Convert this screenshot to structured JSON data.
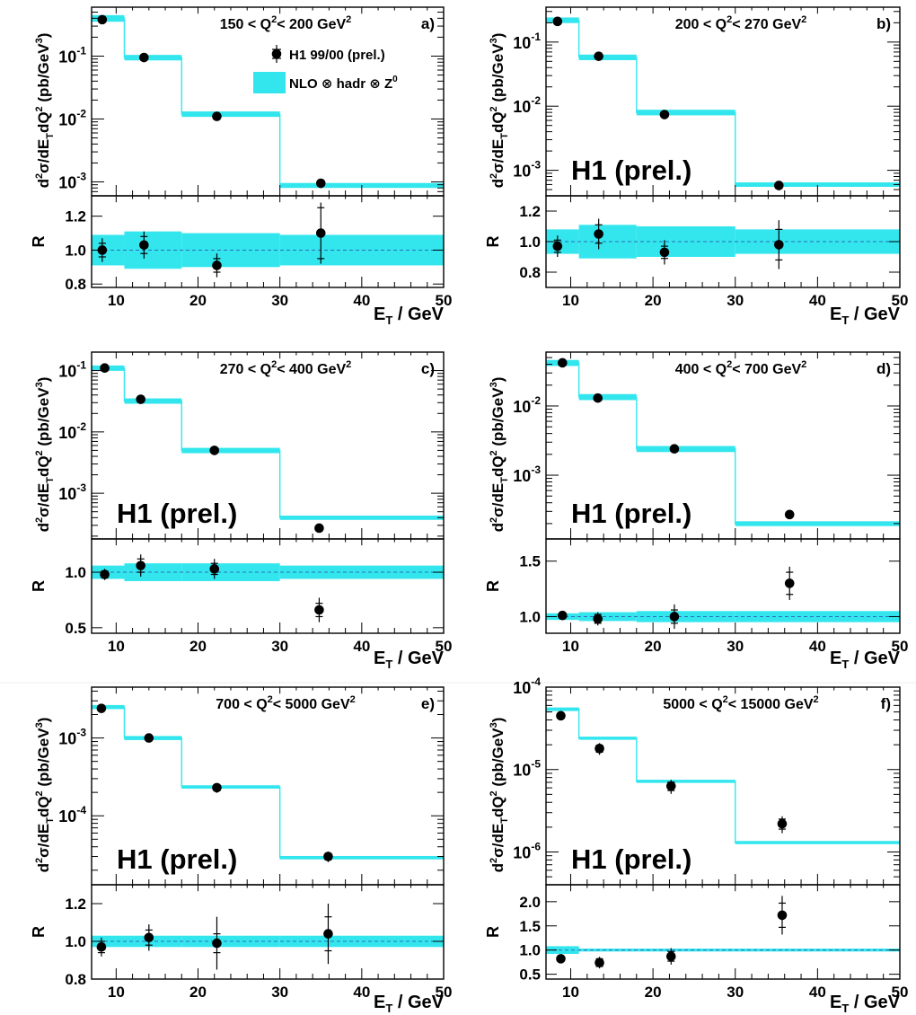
{
  "chart_data": [
    {
      "type": "scatter",
      "panel": "a)",
      "title": "150 < Q²< 200 GeV²",
      "ylabel": "d²σ/dE_TdQ² (pb/GeV³)",
      "ratio_ylabel": "R",
      "xlabel": "E_T / GeV",
      "xlim": [
        7,
        50
      ],
      "xticks": [
        "10",
        "20",
        "30",
        "40",
        "50"
      ],
      "ylog": true,
      "ylim": [
        0.0006,
        0.6
      ],
      "yticks": [
        {
          "v": 0.1,
          "base": "10",
          "exp": "-1"
        },
        {
          "v": 0.01,
          "base": "10",
          "exp": "-2"
        },
        {
          "v": 0.001,
          "base": "10",
          "exp": "-3"
        }
      ],
      "legend": {
        "data": "H1 99/00 (prel.)",
        "theory": "NLO ⊗ hadr ⊗ Z⁰"
      },
      "watermark": "",
      "bins": [
        [
          7,
          11
        ],
        [
          11,
          18
        ],
        [
          18,
          30
        ],
        [
          30,
          50
        ]
      ],
      "series": [
        {
          "name": "H1 99/00 (prel.)",
          "x": [
            8.3,
            13.4,
            22.3,
            35.0
          ],
          "y": [
            0.38,
            0.095,
            0.011,
            0.00095
          ]
        },
        {
          "name": "NLO ⊗ hadr ⊗ Z⁰",
          "y": [
            0.4,
            0.095,
            0.012,
            0.00088
          ],
          "band_rel": [
            0.12,
            0.1,
            0.1,
            0.09
          ]
        }
      ],
      "ratio": {
        "ylim": [
          0.78,
          1.32
        ],
        "yticks": [
          {
            "v": 0.8,
            "t": "0.8"
          },
          {
            "v": 1.0,
            "t": "1.0"
          },
          {
            "v": 1.2,
            "t": "1.2"
          }
        ],
        "values": [
          1.0,
          1.03,
          0.91,
          1.1
        ],
        "err_stat": [
          0.04,
          0.05,
          0.04,
          0.15
        ],
        "err_tot": [
          0.07,
          0.08,
          0.07,
          0.18
        ],
        "band": [
          0.09,
          0.11,
          0.1,
          0.09
        ]
      }
    },
    {
      "type": "scatter",
      "panel": "b)",
      "title": "200 < Q²< 270 GeV²",
      "ylabel": "d²σ/dE_TdQ² (pb/GeV³)",
      "ratio_ylabel": "R",
      "xlabel": "E_T / GeV",
      "xlim": [
        7,
        50
      ],
      "xticks": [
        "10",
        "20",
        "30",
        "40",
        "50"
      ],
      "ylog": true,
      "ylim": [
        0.0004,
        0.35
      ],
      "yticks": [
        {
          "v": 0.1,
          "base": "10",
          "exp": "-1"
        },
        {
          "v": 0.01,
          "base": "10",
          "exp": "-2"
        },
        {
          "v": 0.001,
          "base": "10",
          "exp": "-3"
        }
      ],
      "legend": null,
      "watermark": "H1 (prel.)",
      "bins": [
        [
          7,
          11
        ],
        [
          11,
          18
        ],
        [
          18,
          30
        ],
        [
          30,
          50
        ]
      ],
      "series": [
        {
          "name": "H1 99/00 (prel.)",
          "x": [
            8.4,
            13.4,
            21.4,
            35.3
          ],
          "y": [
            0.21,
            0.06,
            0.0074,
            0.00058
          ]
        },
        {
          "name": "NLO ⊗ hadr ⊗ Z⁰",
          "y": [
            0.22,
            0.058,
            0.008,
            0.0006
          ],
          "band_rel": [
            0.1,
            0.1,
            0.1,
            0.08
          ]
        }
      ],
      "ratio": {
        "ylim": [
          0.7,
          1.3
        ],
        "yticks": [
          {
            "v": 0.8,
            "t": "0.8"
          },
          {
            "v": 1.0,
            "t": "1.0"
          },
          {
            "v": 1.2,
            "t": "1.2"
          }
        ],
        "values": [
          0.97,
          1.05,
          0.93,
          0.98
        ],
        "err_stat": [
          0.04,
          0.06,
          0.04,
          0.1
        ],
        "err_tot": [
          0.07,
          0.1,
          0.08,
          0.16
        ],
        "band": [
          0.08,
          0.11,
          0.1,
          0.08
        ]
      }
    },
    {
      "type": "scatter",
      "panel": "c)",
      "title": "270 < Q²< 400 GeV²",
      "ylabel": "d²σ/dE_TdQ² (pb/GeV³)",
      "ratio_ylabel": "R",
      "xlabel": "E_T / GeV",
      "xlim": [
        7,
        50
      ],
      "xticks": [
        "10",
        "20",
        "30",
        "40",
        "50"
      ],
      "ylog": true,
      "ylim": [
        0.00018,
        0.2
      ],
      "yticks": [
        {
          "v": 0.1,
          "base": "10",
          "exp": "-1"
        },
        {
          "v": 0.01,
          "base": "10",
          "exp": "-2"
        },
        {
          "v": 0.001,
          "base": "10",
          "exp": "-3"
        }
      ],
      "legend": null,
      "watermark": "H1 (prel.)",
      "bins": [
        [
          7,
          11
        ],
        [
          11,
          18
        ],
        [
          18,
          30
        ],
        [
          30,
          50
        ]
      ],
      "series": [
        {
          "name": "H1 99/00 (prel.)",
          "x": [
            8.6,
            13.0,
            22.0,
            34.8
          ],
          "y": [
            0.11,
            0.034,
            0.005,
            0.00027
          ]
        },
        {
          "name": "NLO ⊗ hadr ⊗ Z⁰",
          "y": [
            0.11,
            0.032,
            0.005,
            0.0004
          ],
          "band_rel": [
            0.1,
            0.1,
            0.1,
            0.08
          ]
        }
      ],
      "ratio": {
        "ylim": [
          0.45,
          1.3
        ],
        "yticks": [
          {
            "v": 0.5,
            "t": "0.5"
          },
          {
            "v": 1.0,
            "t": "1.0"
          }
        ],
        "values": [
          0.98,
          1.06,
          1.03,
          0.66
        ],
        "err_stat": [
          0.03,
          0.06,
          0.05,
          0.06
        ],
        "err_tot": [
          0.05,
          0.1,
          0.09,
          0.11
        ],
        "band": [
          0.06,
          0.08,
          0.08,
          0.06
        ]
      }
    },
    {
      "type": "scatter",
      "panel": "d)",
      "title": "400 < Q²< 700 GeV²",
      "ylabel": "d²σ/dE_TdQ² (pb/GeV³)",
      "ratio_ylabel": "R",
      "xlabel": "E_T / GeV",
      "xlim": [
        7,
        50
      ],
      "xticks": [
        "10",
        "20",
        "30",
        "40",
        "50"
      ],
      "ylog": true,
      "ylim": [
        0.00012,
        0.06
      ],
      "yticks": [
        {
          "v": 0.01,
          "base": "10",
          "exp": "-2"
        },
        {
          "v": 0.001,
          "base": "10",
          "exp": "-3"
        }
      ],
      "legend": null,
      "watermark": "H1 (prel.)",
      "bins": [
        [
          7,
          11
        ],
        [
          11,
          18
        ],
        [
          18,
          30
        ],
        [
          30,
          50
        ]
      ],
      "series": [
        {
          "name": "H1 99/00 (prel.)",
          "x": [
            9.0,
            13.3,
            22.6,
            36.6
          ],
          "y": [
            0.042,
            0.013,
            0.0024,
            0.00027
          ]
        },
        {
          "name": "NLO ⊗ hadr ⊗ Z⁰",
          "y": [
            0.042,
            0.0135,
            0.0024,
            0.0002
          ],
          "band_rel": [
            0.1,
            0.1,
            0.1,
            0.08
          ]
        }
      ],
      "ratio": {
        "ylim": [
          0.85,
          1.7
        ],
        "yticks": [
          {
            "v": 1.0,
            "t": "1.0"
          },
          {
            "v": 1.5,
            "t": "1.5"
          }
        ],
        "values": [
          1.01,
          0.98,
          1.0,
          1.3
        ],
        "err_stat": [
          0.02,
          0.04,
          0.06,
          0.1
        ],
        "err_tot": [
          0.03,
          0.06,
          0.11,
          0.15
        ],
        "band": [
          0.03,
          0.04,
          0.05,
          0.05
        ]
      }
    },
    {
      "type": "scatter",
      "panel": "e)",
      "title": "700 < Q²< 5000 GeV²",
      "ylabel": "d²σ/dE_TdQ² (pb/GeV³)",
      "ratio_ylabel": "R",
      "xlabel": "E_T / GeV",
      "xlim": [
        7,
        50
      ],
      "xticks": [
        "10",
        "20",
        "30",
        "40",
        "50"
      ],
      "ylog": true,
      "ylim": [
        1.3e-05,
        0.0045
      ],
      "yticks": [
        {
          "v": 0.001,
          "base": "10",
          "exp": "-3"
        },
        {
          "v": 0.0001,
          "base": "10",
          "exp": "-4"
        }
      ],
      "legend": null,
      "watermark": "H1 (prel.)",
      "bins": [
        [
          7,
          11
        ],
        [
          11,
          18
        ],
        [
          18,
          30
        ],
        [
          30,
          50
        ]
      ],
      "series": [
        {
          "name": "H1 99/00 (prel.)",
          "x": [
            8.2,
            14.0,
            22.3,
            35.9
          ],
          "y": [
            0.0024,
            0.001,
            0.00023,
            3e-05
          ]
        },
        {
          "name": "NLO ⊗ hadr ⊗ Z⁰",
          "y": [
            0.0025,
            0.001,
            0.000235,
            2.9e-05
          ],
          "band_rel": [
            0.06,
            0.06,
            0.05,
            0.05
          ]
        }
      ],
      "ratio": {
        "ylim": [
          0.8,
          1.3
        ],
        "yticks": [
          {
            "v": 0.8,
            "t": "0.8"
          },
          {
            "v": 1.0,
            "t": "1.0"
          },
          {
            "v": 1.2,
            "t": "1.2"
          }
        ],
        "values": [
          0.97,
          1.02,
          0.99,
          1.04
        ],
        "err_stat": [
          0.03,
          0.04,
          0.05,
          0.09
        ],
        "err_tot": [
          0.05,
          0.07,
          0.14,
          0.16
        ],
        "band": [
          0.03,
          0.03,
          0.03,
          0.03
        ]
      }
    },
    {
      "type": "scatter",
      "panel": "f)",
      "title": "5000 < Q²< 15000 GeV²",
      "ylabel": "d²σ/dE_TdQ² (pb/GeV³)",
      "ratio_ylabel": "R",
      "xlabel": "E_T / GeV",
      "xlim": [
        7,
        50
      ],
      "xticks": [
        "10",
        "20",
        "30",
        "40",
        "50"
      ],
      "ylog": true,
      "ylim": [
        4e-07,
        0.0001
      ],
      "yticks": [
        {
          "v": 0.0001,
          "base": "10",
          "exp": "-4"
        },
        {
          "v": 1e-05,
          "base": "10",
          "exp": "-5"
        },
        {
          "v": 1e-06,
          "base": "10",
          "exp": "-6"
        }
      ],
      "legend": null,
      "watermark": "H1 (prel.)",
      "bins": [
        [
          7,
          11
        ],
        [
          11,
          18
        ],
        [
          18,
          30
        ],
        [
          30,
          50
        ]
      ],
      "series": [
        {
          "name": "H1 99/00 (prel.)",
          "x": [
            8.8,
            13.5,
            22.2,
            35.7
          ],
          "y": [
            4.5e-05,
            1.8e-05,
            6.3e-06,
            2.2e-06
          ]
        },
        {
          "name": "NLO ⊗ hadr ⊗ Z⁰",
          "y": [
            5.4e-05,
            2.4e-05,
            7.2e-06,
            1.3e-06
          ],
          "band_rel": [
            0.05,
            0.02,
            0.02,
            0.02
          ]
        }
      ],
      "ratio": {
        "ylim": [
          0.4,
          2.35
        ],
        "yticks": [
          {
            "v": 0.5,
            "t": "0.5"
          },
          {
            "v": 1.0,
            "t": "1.0"
          },
          {
            "v": 1.5,
            "t": "1.5"
          },
          {
            "v": 2.0,
            "t": "2.0"
          }
        ],
        "values": [
          0.82,
          0.74,
          0.87,
          1.72
        ],
        "err_stat": [
          0.05,
          0.08,
          0.1,
          0.25
        ],
        "err_tot": [
          0.08,
          0.12,
          0.17,
          0.4
        ],
        "band": [
          0.08,
          0.03,
          0.03,
          0.03
        ]
      }
    }
  ]
}
